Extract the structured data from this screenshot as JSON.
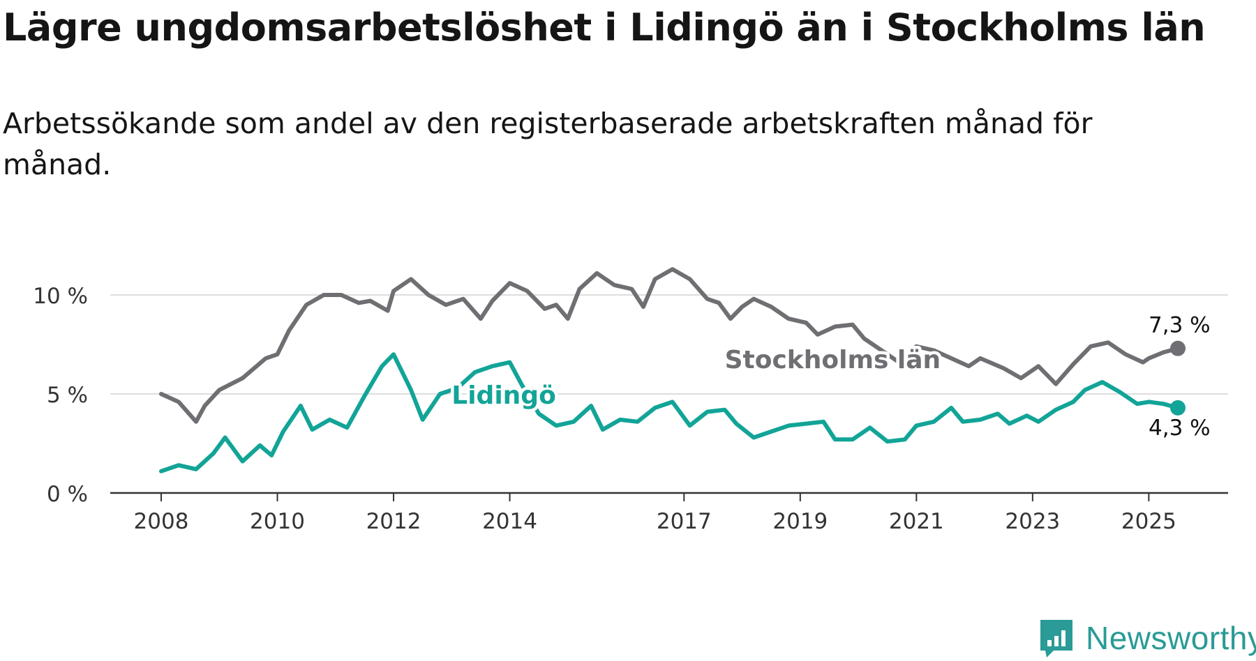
{
  "title": "Lägre ungdomsarbetslöshet i Lidingö än i Stockholms län",
  "subtitle": "Arbetssökande som andel av den registerbaserade arbetskraften månad för månad.",
  "logo_text": "Newsworthy",
  "colors": {
    "stockholm": "#6f6f73",
    "lidingo": "#12a497",
    "grid": "#dddddd",
    "axis": "#333333",
    "logo": "#2a9b96"
  },
  "chart_data": {
    "type": "line",
    "title": "Lägre ungdomsarbetslöshet i Lidingö än i Stockholms län",
    "subtitle": "Arbetssökande som andel av den registerbaserade arbetskraften månad för månad.",
    "x_unit": "year",
    "xlim": [
      2008,
      2025.5
    ],
    "ylim": [
      0,
      12
    ],
    "y_ticks": [
      0,
      5,
      10
    ],
    "y_tick_labels": [
      "0 %",
      "5 %",
      "10 %"
    ],
    "x_ticks": [
      2008,
      2010,
      2012,
      2014,
      2017,
      2019,
      2021,
      2023,
      2025
    ],
    "x_tick_labels": [
      "2008",
      "2010",
      "2012",
      "2014",
      "2017",
      "2019",
      "2021",
      "2023",
      "2025"
    ],
    "grid": true,
    "legend": "inline labels on lines",
    "series": [
      {
        "name": "Stockholms län",
        "end_label": "7,3 %",
        "points": [
          [
            2008.0,
            5.0
          ],
          [
            2008.3,
            4.6
          ],
          [
            2008.6,
            3.6
          ],
          [
            2008.75,
            4.4
          ],
          [
            2009.0,
            5.2
          ],
          [
            2009.4,
            5.8
          ],
          [
            2009.8,
            6.8
          ],
          [
            2010.0,
            7.0
          ],
          [
            2010.2,
            8.2
          ],
          [
            2010.5,
            9.5
          ],
          [
            2010.8,
            10.0
          ],
          [
            2011.1,
            10.0
          ],
          [
            2011.4,
            9.6
          ],
          [
            2011.6,
            9.7
          ],
          [
            2011.9,
            9.2
          ],
          [
            2012.0,
            10.2
          ],
          [
            2012.3,
            10.8
          ],
          [
            2012.6,
            10.0
          ],
          [
            2012.9,
            9.5
          ],
          [
            2013.2,
            9.8
          ],
          [
            2013.5,
            8.8
          ],
          [
            2013.7,
            9.7
          ],
          [
            2014.0,
            10.6
          ],
          [
            2014.3,
            10.2
          ],
          [
            2014.6,
            9.3
          ],
          [
            2014.8,
            9.5
          ],
          [
            2015.0,
            8.8
          ],
          [
            2015.2,
            10.3
          ],
          [
            2015.5,
            11.1
          ],
          [
            2015.8,
            10.5
          ],
          [
            2016.1,
            10.3
          ],
          [
            2016.3,
            9.4
          ],
          [
            2016.5,
            10.8
          ],
          [
            2016.8,
            11.3
          ],
          [
            2017.1,
            10.8
          ],
          [
            2017.4,
            9.8
          ],
          [
            2017.6,
            9.6
          ],
          [
            2017.8,
            8.8
          ],
          [
            2018.0,
            9.4
          ],
          [
            2018.2,
            9.8
          ],
          [
            2018.5,
            9.4
          ],
          [
            2018.8,
            8.8
          ],
          [
            2019.1,
            8.6
          ],
          [
            2019.3,
            8.0
          ],
          [
            2019.6,
            8.4
          ],
          [
            2019.9,
            8.5
          ],
          [
            2020.1,
            7.8
          ],
          [
            2020.4,
            7.2
          ],
          [
            2020.7,
            6.6
          ],
          [
            2021.0,
            7.4
          ],
          [
            2021.3,
            7.2
          ],
          [
            2021.6,
            6.8
          ],
          [
            2021.9,
            6.4
          ],
          [
            2022.1,
            6.8
          ],
          [
            2022.5,
            6.3
          ],
          [
            2022.8,
            5.8
          ],
          [
            2023.1,
            6.4
          ],
          [
            2023.4,
            5.5
          ],
          [
            2023.7,
            6.5
          ],
          [
            2024.0,
            7.4
          ],
          [
            2024.3,
            7.6
          ],
          [
            2024.6,
            7.0
          ],
          [
            2024.9,
            6.6
          ],
          [
            2025.0,
            6.8
          ],
          [
            2025.25,
            7.1
          ],
          [
            2025.5,
            7.3
          ]
        ]
      },
      {
        "name": "Lidingö",
        "end_label": "4,3 %",
        "points": [
          [
            2008.0,
            1.1
          ],
          [
            2008.3,
            1.4
          ],
          [
            2008.6,
            1.2
          ],
          [
            2008.9,
            2.0
          ],
          [
            2009.1,
            2.8
          ],
          [
            2009.4,
            1.6
          ],
          [
            2009.7,
            2.4
          ],
          [
            2009.9,
            1.9
          ],
          [
            2010.1,
            3.1
          ],
          [
            2010.4,
            4.4
          ],
          [
            2010.6,
            3.2
          ],
          [
            2010.9,
            3.7
          ],
          [
            2011.2,
            3.3
          ],
          [
            2011.5,
            4.9
          ],
          [
            2011.8,
            6.4
          ],
          [
            2012.0,
            7.0
          ],
          [
            2012.3,
            5.2
          ],
          [
            2012.5,
            3.7
          ],
          [
            2012.8,
            5.0
          ],
          [
            2013.1,
            5.3
          ],
          [
            2013.4,
            6.1
          ],
          [
            2013.7,
            6.4
          ],
          [
            2014.0,
            6.6
          ],
          [
            2014.2,
            5.5
          ],
          [
            2014.5,
            4.0
          ],
          [
            2014.8,
            3.4
          ],
          [
            2015.1,
            3.6
          ],
          [
            2015.4,
            4.4
          ],
          [
            2015.6,
            3.2
          ],
          [
            2015.9,
            3.7
          ],
          [
            2016.2,
            3.6
          ],
          [
            2016.5,
            4.3
          ],
          [
            2016.8,
            4.6
          ],
          [
            2017.1,
            3.4
          ],
          [
            2017.4,
            4.1
          ],
          [
            2017.7,
            4.2
          ],
          [
            2017.9,
            3.5
          ],
          [
            2018.2,
            2.8
          ],
          [
            2018.5,
            3.1
          ],
          [
            2018.8,
            3.4
          ],
          [
            2019.1,
            3.5
          ],
          [
            2019.4,
            3.6
          ],
          [
            2019.6,
            2.7
          ],
          [
            2019.9,
            2.7
          ],
          [
            2020.2,
            3.3
          ],
          [
            2020.5,
            2.6
          ],
          [
            2020.8,
            2.7
          ],
          [
            2021.0,
            3.4
          ],
          [
            2021.3,
            3.6
          ],
          [
            2021.6,
            4.3
          ],
          [
            2021.8,
            3.6
          ],
          [
            2022.1,
            3.7
          ],
          [
            2022.4,
            4.0
          ],
          [
            2022.6,
            3.5
          ],
          [
            2022.9,
            3.9
          ],
          [
            2023.1,
            3.6
          ],
          [
            2023.4,
            4.2
          ],
          [
            2023.7,
            4.6
          ],
          [
            2023.9,
            5.2
          ],
          [
            2024.2,
            5.6
          ],
          [
            2024.5,
            5.1
          ],
          [
            2024.8,
            4.5
          ],
          [
            2025.0,
            4.6
          ],
          [
            2025.25,
            4.5
          ],
          [
            2025.5,
            4.3
          ]
        ]
      }
    ]
  }
}
